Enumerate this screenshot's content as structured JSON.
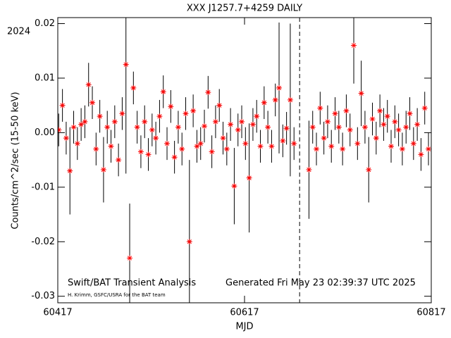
{
  "chart_data": {
    "type": "scatter",
    "title": "XXX J1257.7+4259 DAILY",
    "xlabel": "MJD",
    "ylabel": "Counts/cm^2/sec (15-50 keV)",
    "year_label": "2024",
    "annotations": [
      "Swift/BAT Transient Analysis",
      "H. Krimm, GSFC/USRA for the BAT team",
      "Generated Fri May 23 02:39:37 UTC 2025"
    ],
    "xlim": [
      60417,
      60817
    ],
    "xticks": [
      60417,
      60617,
      60817
    ],
    "ylim": [
      -0.0312,
      0.0211
    ],
    "yticks": [
      0.02,
      0.01,
      {
        "value": 0,
        "label": "0.00"
      },
      -0.01,
      -0.02,
      -0.03
    ],
    "vline": 60676,
    "color": "#ff0000",
    "x": [
      60418,
      60422,
      60426,
      60430,
      60434,
      60438,
      60442,
      60446,
      60450,
      60454,
      60458,
      60462,
      60466,
      60470,
      60474,
      60478,
      60482,
      60486,
      60490,
      60494,
      60498,
      60502,
      60506,
      60510,
      60514,
      60518,
      60522,
      60526,
      60530,
      60534,
      60538,
      60542,
      60546,
      60550,
      60554,
      60558,
      60562,
      60566,
      60570,
      60574,
      60578,
      60582,
      60586,
      60590,
      60594,
      60598,
      60602,
      60606,
      60610,
      60614,
      60618,
      60622,
      60626,
      60630,
      60634,
      60638,
      60642,
      60646,
      60650,
      60654,
      60658,
      60662,
      60666,
      60670,
      60686,
      60690,
      60694,
      60698,
      60702,
      60706,
      60710,
      60714,
      60718,
      60722,
      60726,
      60730,
      60734,
      60738,
      60742,
      60746,
      60750,
      60754,
      60758,
      60762,
      60766,
      60770,
      60774,
      60778,
      60782,
      60786,
      60790,
      60794,
      60798,
      60802,
      60806,
      60810,
      60814
    ],
    "values": [
      0.0005,
      0.005,
      -0.001,
      -0.007,
      0.001,
      -0.002,
      0.0015,
      0.002,
      0.0088,
      0.0055,
      -0.003,
      0.003,
      -0.0068,
      0.001,
      -0.0025,
      0.002,
      -0.005,
      0.0035,
      0.0125,
      -0.023,
      0.0082,
      0.001,
      -0.0035,
      0.002,
      -0.004,
      0.0005,
      -0.001,
      0.003,
      0.0075,
      -0.002,
      0.0048,
      -0.0045,
      0.001,
      -0.003,
      0.0035,
      -0.02,
      0.004,
      -0.0025,
      -0.002,
      0.0012,
      0.0074,
      -0.0035,
      0.002,
      0.005,
      -0.001,
      -0.003,
      0.0015,
      -0.0098,
      0.0005,
      0.002,
      -0.002,
      -0.0083,
      0.0015,
      0.003,
      -0.0025,
      0.0055,
      0.001,
      -0.0025,
      0.006,
      0.0082,
      -0.0015,
      0.0008,
      0.006,
      -0.002,
      -0.0068,
      0.001,
      -0.003,
      0.0045,
      -0.001,
      0.002,
      -0.0025,
      0.0035,
      0.001,
      -0.003,
      0.004,
      0.0005,
      0.016,
      -0.002,
      0.0072,
      0.001,
      -0.0068,
      0.0025,
      -0.001,
      0.004,
      0.0015,
      0.003,
      -0.0025,
      0.002,
      0.0005,
      -0.003,
      0.001,
      0.0035,
      -0.002,
      0.0015,
      -0.004,
      0.0045,
      -0.003
    ],
    "errors": [
      0.003,
      0.003,
      0.003,
      0.008,
      0.003,
      0.003,
      0.003,
      0.003,
      0.004,
      0.003,
      0.003,
      0.003,
      0.006,
      0.003,
      0.003,
      0.003,
      0.003,
      0.003,
      0.02,
      0.01,
      0.003,
      0.003,
      0.003,
      0.003,
      0.003,
      0.003,
      0.003,
      0.003,
      0.003,
      0.003,
      0.003,
      0.003,
      0.003,
      0.003,
      0.003,
      0.015,
      0.003,
      0.003,
      0.003,
      0.003,
      0.003,
      0.003,
      0.003,
      0.003,
      0.003,
      0.003,
      0.003,
      0.007,
      0.003,
      0.003,
      0.003,
      0.01,
      0.003,
      0.003,
      0.003,
      0.003,
      0.003,
      0.003,
      0.003,
      0.012,
      0.003,
      0.003,
      0.014,
      0.003,
      0.009,
      0.003,
      0.003,
      0.003,
      0.003,
      0.003,
      0.003,
      0.003,
      0.003,
      0.003,
      0.003,
      0.003,
      0.007,
      0.003,
      0.006,
      0.003,
      0.006,
      0.003,
      0.003,
      0.003,
      0.003,
      0.003,
      0.003,
      0.003,
      0.003,
      0.003,
      0.003,
      0.003,
      0.003,
      0.003,
      0.003,
      0.003,
      0.003
    ]
  }
}
